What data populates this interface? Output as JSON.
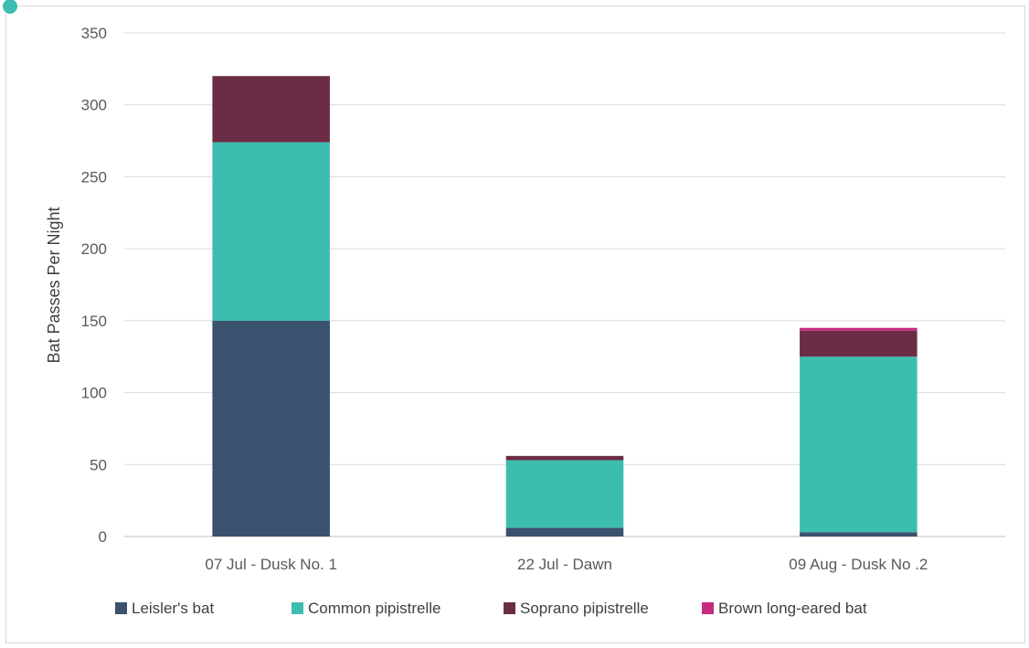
{
  "chart_data": {
    "type": "bar",
    "stacked": true,
    "title": "",
    "xlabel": "",
    "ylabel": "Bat Passes Per Night",
    "ylim": [
      0,
      350
    ],
    "yticks": [
      "0",
      "50",
      "100",
      "150",
      "200",
      "250",
      "300",
      "350"
    ],
    "grid": true,
    "legend_position": "bottom",
    "categories": [
      "07 Jul - Dusk No. 1",
      "22 Jul - Dawn",
      "09 Aug - Dusk No .2"
    ],
    "series": [
      {
        "name": "Leisler's bat",
        "color": "#3a526e",
        "values": [
          150,
          6,
          3
        ]
      },
      {
        "name": "Common pipistrelle",
        "color": "#3dbdb0",
        "values": [
          124,
          47,
          122
        ]
      },
      {
        "name": "Soprano pipistrelle",
        "color": "#6b2d46",
        "values": [
          46,
          3,
          18
        ]
      },
      {
        "name": "Brown long-eared bat",
        "color": "#c72b7e",
        "values": [
          0,
          0,
          2
        ]
      }
    ]
  }
}
